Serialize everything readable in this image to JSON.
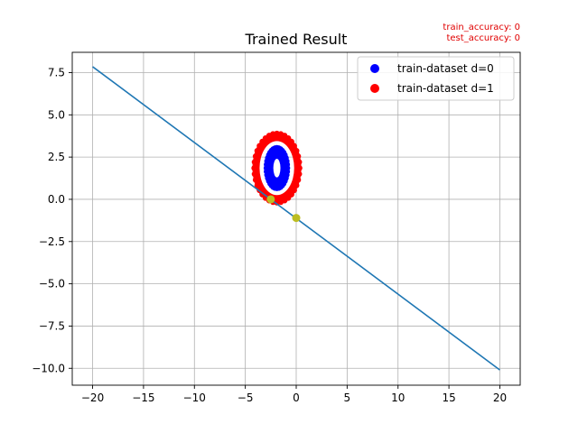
{
  "chart_data": {
    "type": "scatter",
    "title": "Trained Result",
    "xlabel": "",
    "ylabel": "",
    "xlim": [
      -22,
      22
    ],
    "ylim": [
      -11,
      8.7
    ],
    "x_ticks": [
      -20,
      -15,
      -10,
      -5,
      0,
      5,
      10,
      15,
      20
    ],
    "y_ticks": [
      -10.0,
      -7.5,
      -5.0,
      -2.5,
      0.0,
      2.5,
      5.0,
      7.5
    ],
    "x_tick_labels": [
      "−20",
      "−15",
      "−10",
      "−5",
      "0",
      "5",
      "10",
      "15",
      "20"
    ],
    "y_tick_labels": [
      "−10.0",
      "−7.5",
      "−5.0",
      "−2.5",
      "0.0",
      "2.5",
      "5.0",
      "7.5"
    ],
    "grid": true,
    "legend_placement": "top-right",
    "annotations": {
      "train_accuracy": "train_accuracy: 0",
      "test_accuracy": "test_accuracy: 0"
    },
    "series": [
      {
        "name": "train-dataset d=0",
        "kind": "scatter-ring",
        "color": "#0000ff",
        "center": [
          -1.9,
          1.85
        ],
        "radius_inner": [
          0.35,
          0.55
        ],
        "radius_outer": [
          1.2,
          1.3
        ]
      },
      {
        "name": "train-dataset d=1",
        "kind": "scatter-ring",
        "color": "#ff0000",
        "center": [
          -1.9,
          1.85
        ],
        "radius_inner": [
          1.7,
          1.6
        ],
        "radius_outer": [
          2.4,
          2.15
        ]
      }
    ],
    "line": {
      "kind": "line",
      "color": "#1f77b4",
      "x": [
        -20,
        20
      ],
      "y": [
        7.85,
        -10.1
      ]
    },
    "intercept_points": {
      "kind": "points",
      "color": "#bcbd22",
      "x": [
        -2.5,
        0
      ],
      "y": [
        0.0,
        -1.1
      ]
    }
  }
}
